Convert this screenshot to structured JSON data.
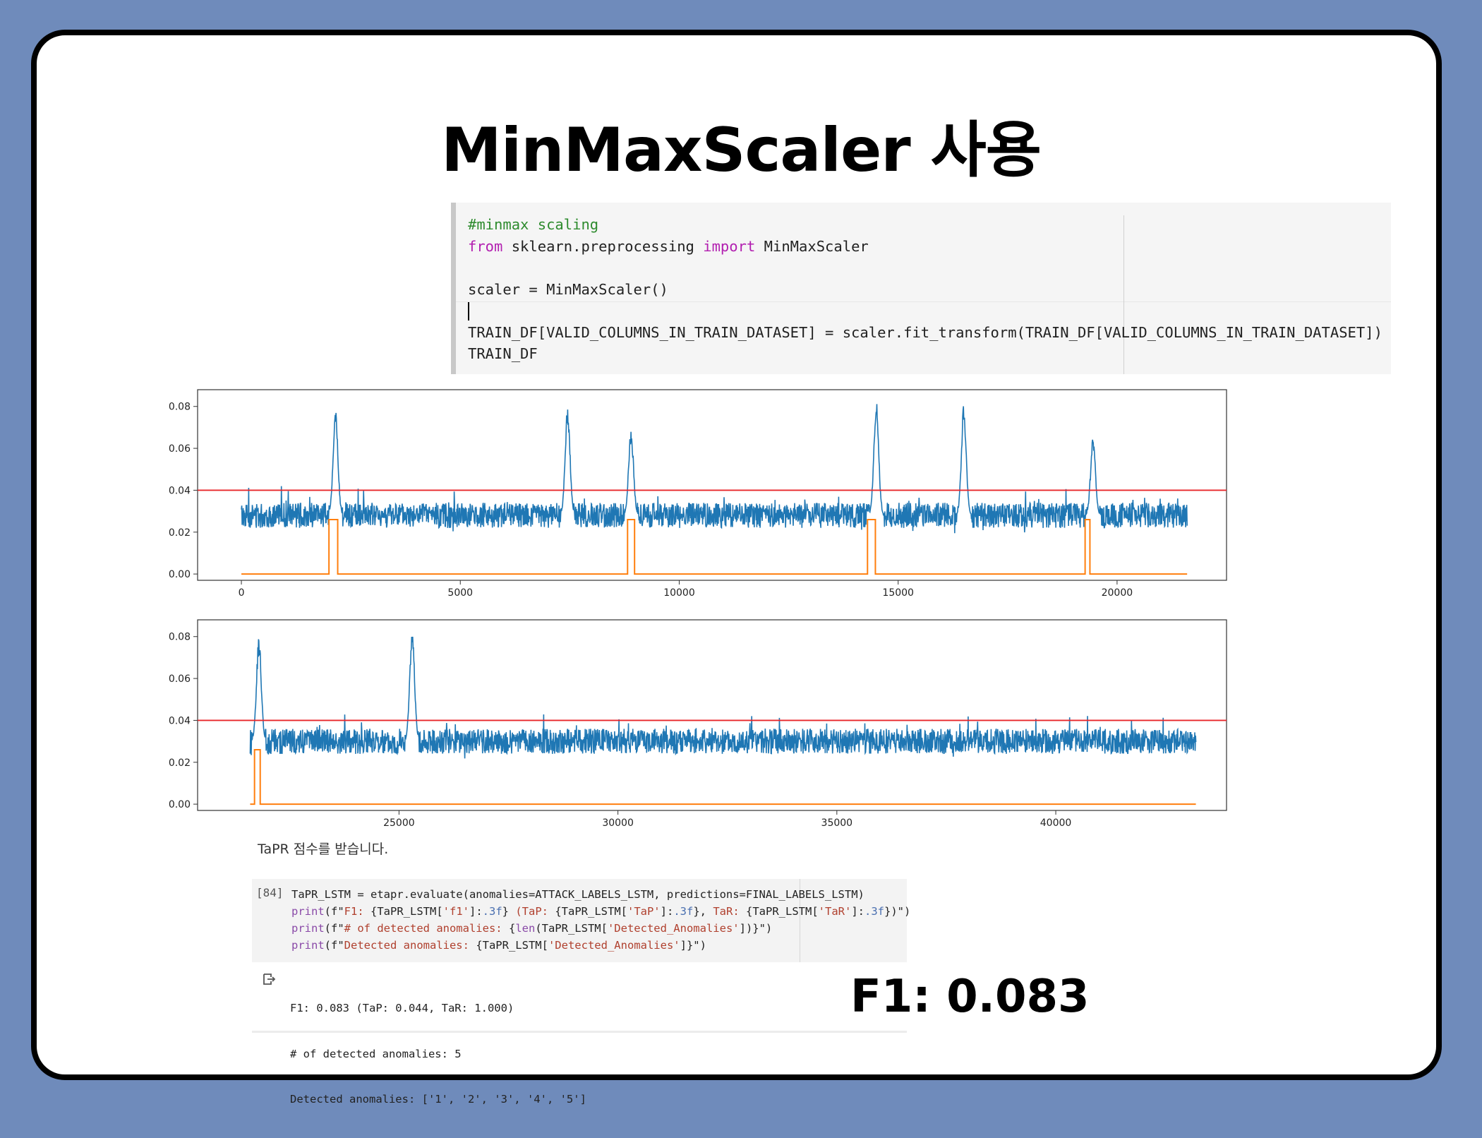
{
  "slide": {
    "title": "MinMaxScaler 사용",
    "f1_highlight": "F1: 0.083"
  },
  "code_cell": {
    "lines": [
      [
        {
          "t": "#minmax scaling",
          "c": "comment"
        }
      ],
      [
        {
          "t": "from",
          "c": "kw"
        },
        {
          "t": " sklearn.preprocessing ",
          "c": ""
        },
        {
          "t": "import",
          "c": "kw"
        },
        {
          "t": " MinMaxScaler",
          "c": ""
        }
      ],
      [],
      [
        {
          "t": "scaler = MinMaxScaler()",
          "c": ""
        }
      ],
      [
        {
          "t": "",
          "c": "caret"
        }
      ],
      [
        {
          "t": "TRAIN_DF[VALID_COLUMNS_IN_TRAIN_DATASET] = scaler.fit_transform(TRAIN_DF[VALID_COLUMNS_IN_TRAIN_DATASET])",
          "c": ""
        }
      ],
      [
        {
          "t": "TRAIN_DF",
          "c": ""
        }
      ]
    ]
  },
  "chart_data": [
    {
      "type": "line",
      "xlim": [
        -1000,
        22500
      ],
      "ylim": [
        -0.003,
        0.088
      ],
      "x_ticks": [
        0,
        5000,
        10000,
        15000,
        20000
      ],
      "x_tick_labels": [
        "0",
        "5000",
        "10000",
        "15000",
        "20000"
      ],
      "y_ticks": [
        0.0,
        0.02,
        0.04,
        0.06,
        0.08
      ],
      "y_tick_labels": [
        "0.00",
        "0.02",
        "0.04",
        "0.06",
        "0.08"
      ],
      "threshold": 0.04,
      "x_range": [
        0,
        21600
      ],
      "series": [
        {
          "color": "#1f77b4",
          "kind": "anomaly_score",
          "base": 0.028,
          "noise": 0.006,
          "spikes": [
            [
              2150,
              0.079
            ],
            [
              7450,
              0.08
            ],
            [
              8900,
              0.07
            ],
            [
              14500,
              0.084
            ],
            [
              16500,
              0.082
            ],
            [
              19450,
              0.065
            ]
          ]
        },
        {
          "color": "#ff7f0e",
          "kind": "attack_label",
          "low": 0.0,
          "high": 0.026,
          "segments": [
            [
              2000,
              2200
            ],
            [
              8820,
              8980
            ],
            [
              14300,
              14480
            ],
            [
              19270,
              19380
            ]
          ]
        }
      ],
      "threshold_color": "#e8262a",
      "grid": false
    },
    {
      "type": "line",
      "xlim": [
        20400,
        43900
      ],
      "ylim": [
        -0.003,
        0.088
      ],
      "x_ticks": [
        25000,
        30000,
        35000,
        40000
      ],
      "x_tick_labels": [
        "25000",
        "30000",
        "35000",
        "40000"
      ],
      "y_ticks": [
        0.0,
        0.02,
        0.04,
        0.06,
        0.08
      ],
      "y_tick_labels": [
        "0.00",
        "0.02",
        "0.04",
        "0.06",
        "0.08"
      ],
      "threshold": 0.04,
      "x_range": [
        21600,
        43200
      ],
      "series": [
        {
          "color": "#1f77b4",
          "kind": "anomaly_score",
          "base": 0.03,
          "noise": 0.006,
          "spikes": [
            [
              21800,
              0.08
            ],
            [
              25300,
              0.084
            ]
          ]
        },
        {
          "color": "#ff7f0e",
          "kind": "attack_label",
          "low": 0.0,
          "high": 0.026,
          "segments": [
            [
              21700,
              21830
            ]
          ]
        }
      ],
      "threshold_color": "#e8262a",
      "grid": false
    }
  ],
  "tapr_text": "TaPR 점수를 받습니다.",
  "eval_cell": {
    "exec_count": "[84]",
    "lines": [
      [
        {
          "t": "TaPR_LSTM = etapr.evaluate(anomalies=ATTACK_LABELS_LSTM, predictions=FINAL_LABELS_LSTM)",
          "c": ""
        }
      ],
      [
        {
          "t": "print",
          "c": "fn"
        },
        {
          "t": "(f\"",
          "c": ""
        },
        {
          "t": "F1: ",
          "c": "str"
        },
        {
          "t": "{TaPR_LSTM[",
          "c": ""
        },
        {
          "t": "'f1'",
          "c": "str"
        },
        {
          "t": "]:",
          "c": ""
        },
        {
          "t": ".3f",
          "c": "fmt"
        },
        {
          "t": "} ",
          "c": ""
        },
        {
          "t": "(TaP: ",
          "c": "str"
        },
        {
          "t": "{TaPR_LSTM[",
          "c": ""
        },
        {
          "t": "'TaP'",
          "c": "str"
        },
        {
          "t": "]:",
          "c": ""
        },
        {
          "t": ".3f",
          "c": "fmt"
        },
        {
          "t": "}, ",
          "c": ""
        },
        {
          "t": "TaR: ",
          "c": "str"
        },
        {
          "t": "{TaPR_LSTM[",
          "c": ""
        },
        {
          "t": "'TaR'",
          "c": "str"
        },
        {
          "t": "]:",
          "c": ""
        },
        {
          "t": ".3f",
          "c": "fmt"
        },
        {
          "t": "})\")",
          "c": ""
        }
      ],
      [
        {
          "t": "print",
          "c": "fn"
        },
        {
          "t": "(f\"",
          "c": ""
        },
        {
          "t": "# of detected anomalies: ",
          "c": "str"
        },
        {
          "t": "{",
          "c": ""
        },
        {
          "t": "len",
          "c": "fn"
        },
        {
          "t": "(TaPR_LSTM[",
          "c": ""
        },
        {
          "t": "'Detected_Anomalies'",
          "c": "str"
        },
        {
          "t": "])}\")",
          "c": ""
        }
      ],
      [
        {
          "t": "print",
          "c": "fn"
        },
        {
          "t": "(f\"",
          "c": ""
        },
        {
          "t": "Detected anomalies: ",
          "c": "str"
        },
        {
          "t": "{TaPR_LSTM[",
          "c": ""
        },
        {
          "t": "'Detected_Anomalies'",
          "c": "str"
        },
        {
          "t": "]}\")",
          "c": ""
        }
      ]
    ]
  },
  "output": {
    "icon": "output-redirect-icon",
    "lines": [
      "F1: 0.083 (TaP: 0.044, TaR: 1.000)",
      "# of detected anomalies: 5",
      "Detected anomalies: ['1', '2', '3', '4', '5']"
    ]
  }
}
